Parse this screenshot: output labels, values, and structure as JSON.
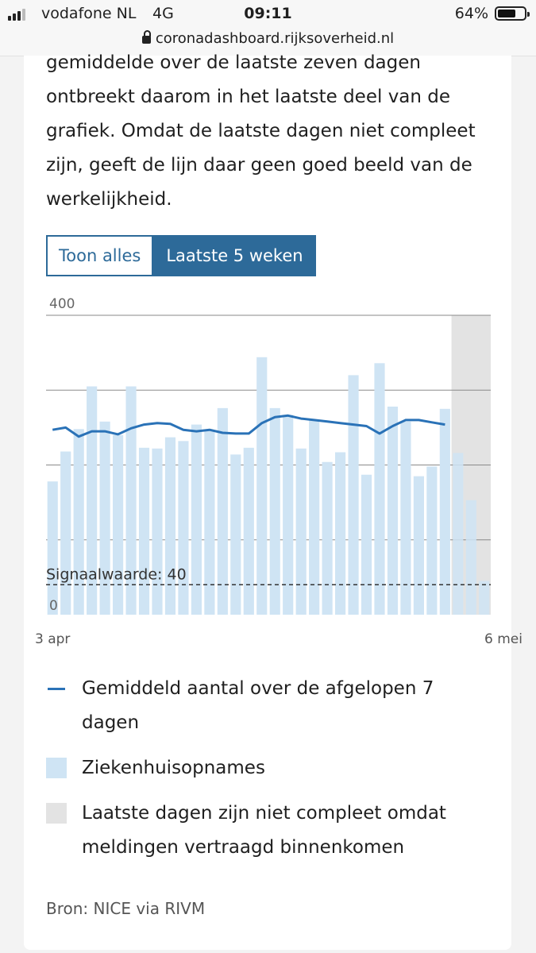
{
  "status": {
    "carrier": "vodafone NL",
    "network": "4G",
    "time": "09:11",
    "battery": "64%"
  },
  "browser": {
    "url": "coronadashboard.rijksoverheid.nl"
  },
  "article": {
    "lines": [
      "gemiddelde over de laatste zeven dagen",
      "ontbreekt daarom in het laatste deel van de",
      "grafiek. Omdat de laatste dagen niet compleet",
      "zijn, geeft de lijn daar geen goed beeld van de",
      "werkelijkheid."
    ]
  },
  "toggle": {
    "all": "Toon alles",
    "recent": "Laatste 5 weken",
    "selected": "recent"
  },
  "chart_data": {
    "type": "bar",
    "x_start_label": "3 apr",
    "x_end_label": "6 mei",
    "ylim": [
      0,
      400
    ],
    "y_tick_labels": [
      "400",
      "0"
    ],
    "gridlines": [
      100,
      200,
      300,
      400
    ],
    "threshold": {
      "value": 40,
      "label": "Signaalwaarde: 40"
    },
    "incomplete_from_index": 31,
    "series": [
      {
        "name": "Ziekenhuisopnames",
        "type": "bar",
        "values": [
          178,
          218,
          248,
          305,
          258,
          240,
          305,
          223,
          222,
          237,
          232,
          254,
          247,
          276,
          214,
          223,
          344,
          276,
          267,
          222,
          260,
          204,
          217,
          320,
          187,
          336,
          278,
          258,
          185,
          198,
          275,
          216,
          153,
          45
        ]
      },
      {
        "name": "Gemiddeld aantal over de afgelopen 7 dagen",
        "type": "line",
        "values": [
          247,
          250,
          238,
          245,
          245,
          241,
          249,
          254,
          256,
          255,
          247,
          245,
          247,
          243,
          242,
          242,
          256,
          264,
          266,
          262,
          260,
          258,
          256,
          254,
          252,
          242,
          252,
          260,
          260,
          257,
          254
        ]
      }
    ]
  },
  "legend": {
    "line": "Gemiddeld aantal over de afgelopen 7 dagen",
    "bars": "Ziekenhuisopnames",
    "incomplete": "Laatste dagen zijn niet compleet omdat meldingen vertraagd binnenkomen"
  },
  "source": "Bron: NICE via RIVM",
  "colors": {
    "accent": "#2d6a99",
    "bar": "#cfe4f4",
    "line": "#2a72b7",
    "incomplete_band": "#e3e3e3"
  }
}
